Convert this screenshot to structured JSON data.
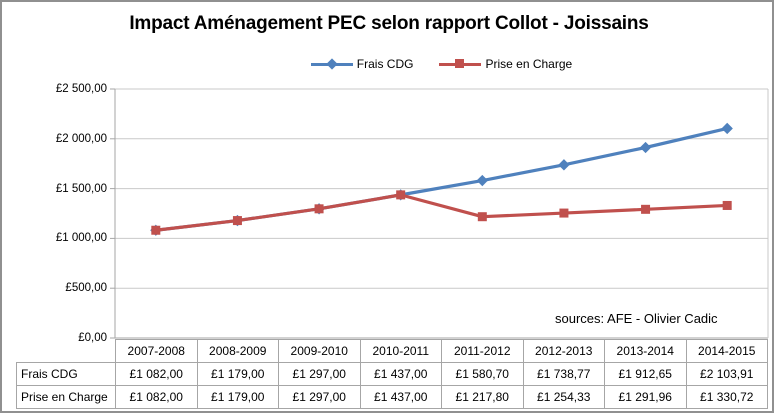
{
  "title": "Impact Aménagement PEC selon rapport Collot - Joissains",
  "legend": {
    "items": [
      {
        "label": "Frais CDG",
        "color": "#4F81BD",
        "marker": "diamond"
      },
      {
        "label": "Prise en Charge",
        "color": "#C0504D",
        "marker": "square"
      }
    ]
  },
  "y_axis": {
    "tick_labels": [
      "£2 500,00",
      "£2 000,00",
      "£1 500,00",
      "£1 000,00",
      "£500,00",
      "£0,00"
    ]
  },
  "annotation": {
    "sources_note": "sources: AFE - Olivier Cadic"
  },
  "chart_data": {
    "type": "line",
    "title": "Impact Aménagement PEC selon rapport Collot - Joissains",
    "categories": [
      "2007-2008",
      "2008-2009",
      "2009-2010",
      "2010-2011",
      "2011-2012",
      "2012-2013",
      "2013-2014",
      "2014-2015"
    ],
    "series": [
      {
        "name": "Frais CDG",
        "color": "#4F81BD",
        "marker": "diamond",
        "values": [
          1082.0,
          1179.0,
          1297.0,
          1437.0,
          1580.7,
          1738.77,
          1912.65,
          2103.91
        ],
        "formatted": [
          "£1 082,00",
          "£1 179,00",
          "£1 297,00",
          "£1 437,00",
          "£1 580,70",
          "£1 738,77",
          "£1 912,65",
          "£2 103,91"
        ]
      },
      {
        "name": "Prise en Charge",
        "color": "#C0504D",
        "marker": "square",
        "values": [
          1082.0,
          1179.0,
          1297.0,
          1437.0,
          1217.8,
          1254.33,
          1291.96,
          1330.72
        ],
        "formatted": [
          "£1 082,00",
          "£1 179,00",
          "£1 297,00",
          "£1 437,00",
          "£1 217,80",
          "£1 254,33",
          "£1 291,96",
          "£1 330,72"
        ]
      }
    ],
    "xlabel": "",
    "ylabel": "",
    "ylim": [
      0,
      2500
    ],
    "y_tick_step": 500,
    "grid": true,
    "legend_position": "top"
  }
}
